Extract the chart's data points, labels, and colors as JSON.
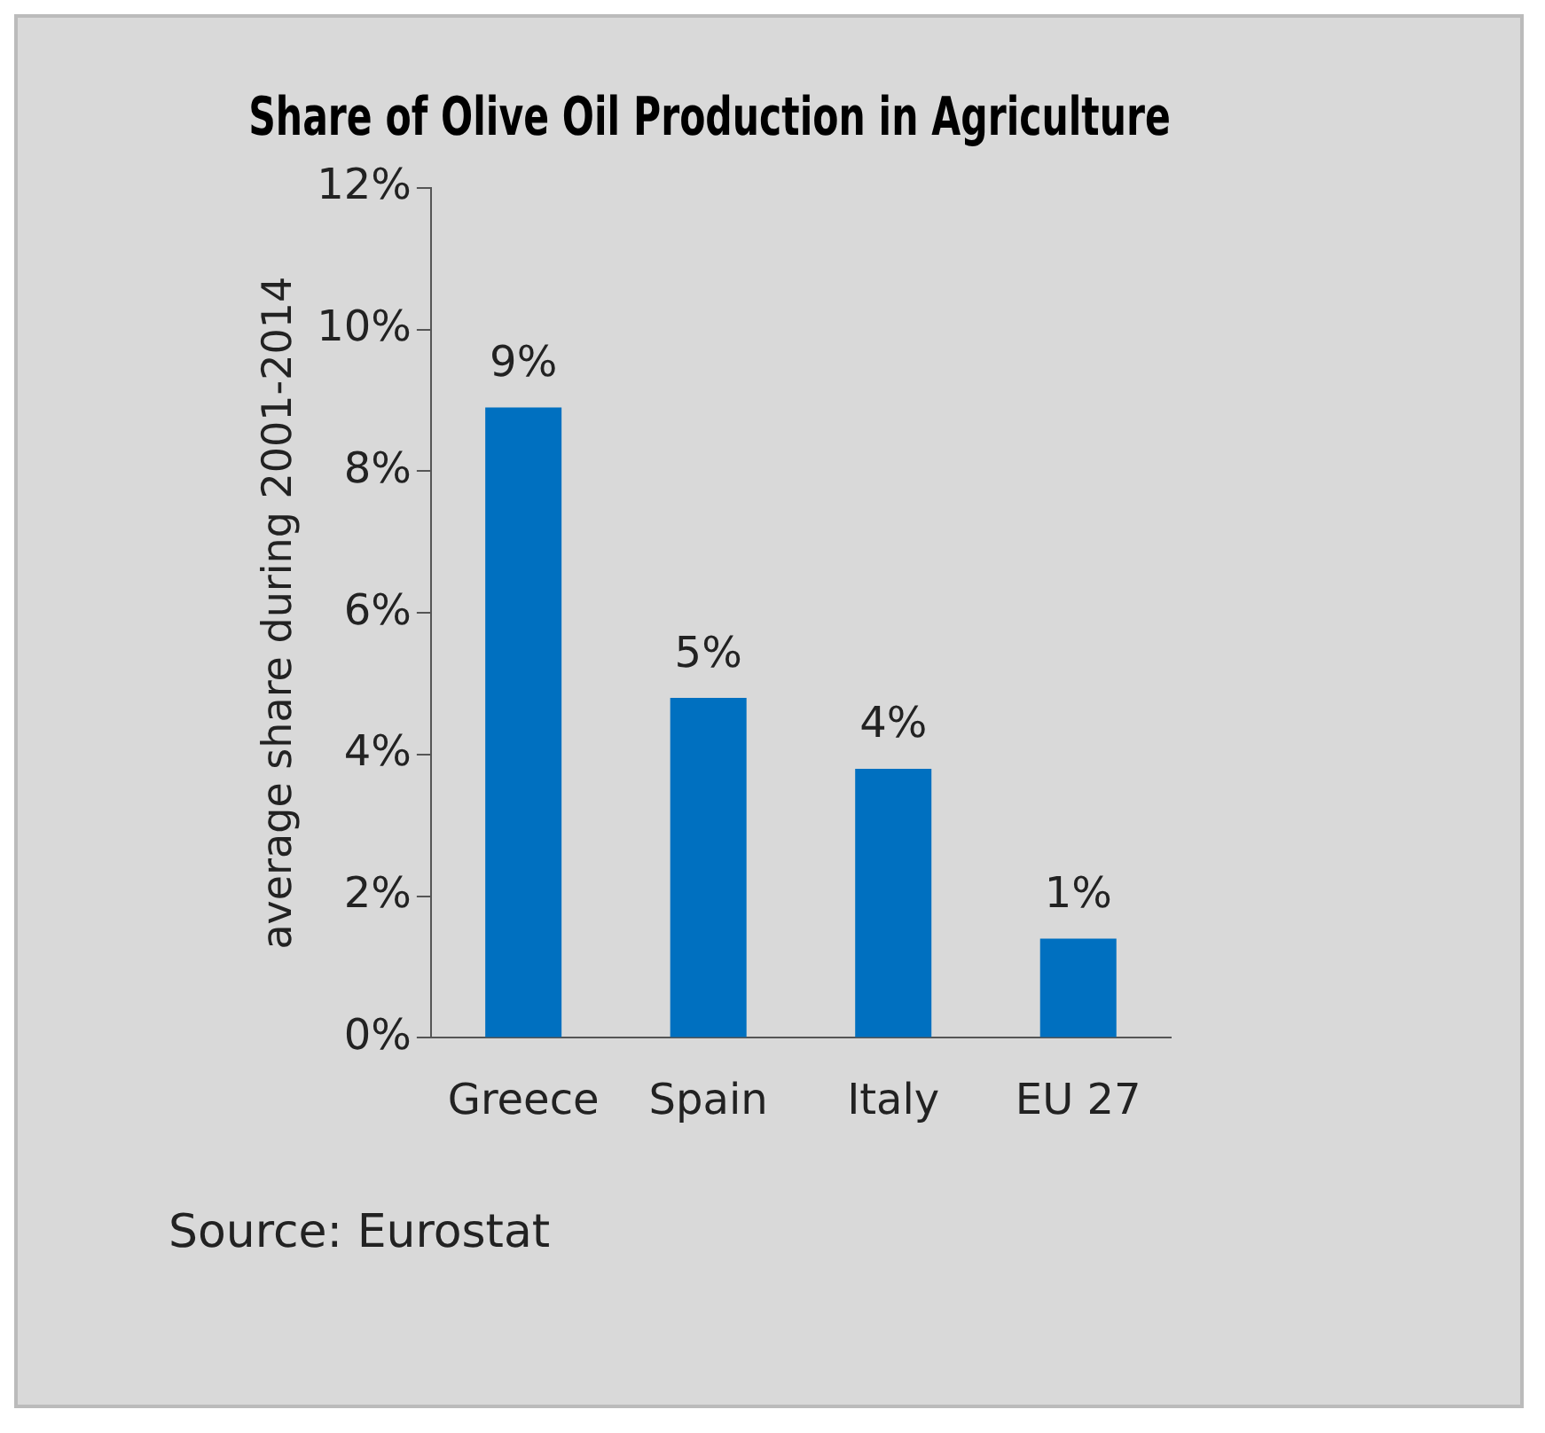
{
  "chart_data": {
    "type": "bar",
    "title": "Share of Olive Oil Production in Agriculture",
    "ylabel": "average share during 2001-2014",
    "categories": [
      "Greece",
      "Spain",
      "Italy",
      "EU 27"
    ],
    "values": [
      8.9,
      4.8,
      3.8,
      1.4
    ],
    "value_labels": [
      "9%",
      "5%",
      "4%",
      "1%"
    ],
    "color": "#0070c0",
    "ylim": [
      0,
      12
    ],
    "yticks": [
      {
        "value": 0,
        "label": "0%"
      },
      {
        "value": 2,
        "label": "2%"
      },
      {
        "value": 4,
        "label": "4%"
      },
      {
        "value": 6,
        "label": "6%"
      },
      {
        "value": 8,
        "label": "8%"
      },
      {
        "value": 10,
        "label": "10%"
      },
      {
        "value": 12,
        "label": "12%"
      }
    ],
    "grid": false,
    "legend": false,
    "annotations": [
      "Source: Eurostat"
    ]
  }
}
